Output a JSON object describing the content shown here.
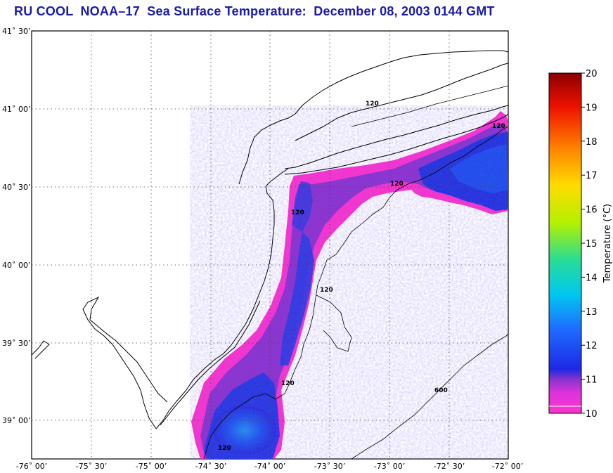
{
  "title": "RU COOL  NOAA–17  Sea Surface Temperature:  December 08, 2003 0144 GMT",
  "latitude_labels": [
    "41˚ 30’",
    "41˚ 00’",
    "40˚ 30’",
    "40˚ 00’",
    "39˚ 30’",
    "39˚ 00’"
  ],
  "longitude_labels": [
    "-76˚ 00’",
    "-75˚ 30’",
    "-75˚ 00’",
    "-74˚ 30’",
    "-74˚ 00’",
    "-73˚ 30’",
    "-73˚ 00’",
    "-72˚ 30’",
    "-72˚ 00’"
  ],
  "bathymetry_labels": [
    "120",
    "120",
    "120",
    "120",
    "120",
    "120",
    "120",
    "600"
  ],
  "colorbar": {
    "title": "Temperature (°C)",
    "min": 10,
    "max": 20,
    "ticks": [
      "10",
      "11",
      "12",
      "13",
      "14",
      "15",
      "16",
      "17",
      "18",
      "19",
      "20"
    ],
    "colors": [
      "#ff33cc",
      "#8833cc",
      "#1e28e6",
      "#1e6eff",
      "#00c8f0",
      "#28dc96",
      "#b4f000",
      "#ffdc00",
      "#ff8200",
      "#ee1100",
      "#8c0000"
    ]
  }
}
